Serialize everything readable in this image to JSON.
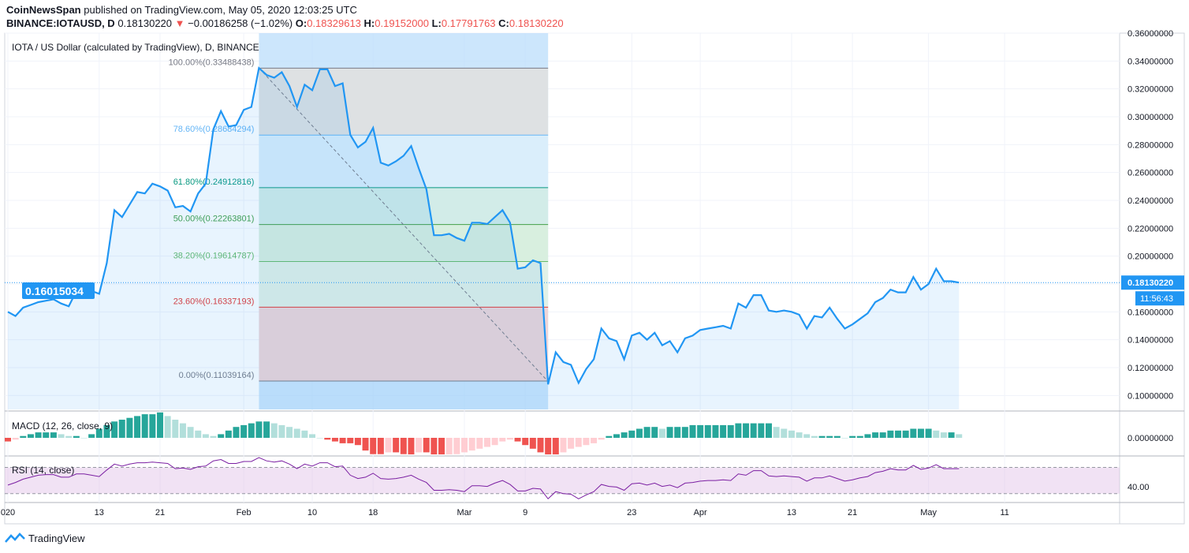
{
  "header": {
    "publisher": "CoinNewsSpan",
    "published_text": "published on TradingView.com, May 05, 2020 12:03:25 UTC",
    "symbol": "BINANCE:IOTAUSD, D",
    "last_price": "0.18130220",
    "change_arrow": "▼",
    "change": "−0.00186258 (−1.02%)",
    "open_label": "O:",
    "open": "0.18329613",
    "high_label": "H:",
    "high": "0.19152000",
    "low_label": "L:",
    "low": "0.17791763",
    "close_label": "C:",
    "close": "0.18130220"
  },
  "chart_data": {
    "type": "line",
    "title": "IOTA / US Dollar (calculated by TradingView), D, BINANCE",
    "xlabel": "",
    "ylabel": "",
    "ylim": [
      0.09,
      0.36
    ],
    "y_ticks": [
      "0.36000000",
      "0.34000000",
      "0.32000000",
      "0.30000000",
      "0.28000000",
      "0.26000000",
      "0.24000000",
      "0.22000000",
      "0.20000000",
      "0.18000000",
      "0.16000000",
      "0.14000000",
      "0.12000000",
      "0.10000000"
    ],
    "y_tick_values": [
      0.36,
      0.34,
      0.32,
      0.3,
      0.28,
      0.26,
      0.24,
      0.22,
      0.2,
      0.18,
      0.16,
      0.14,
      0.12,
      0.1
    ],
    "x_ticks": [
      {
        "day": 0,
        "label": "020"
      },
      {
        "day": 12,
        "label": "13"
      },
      {
        "day": 20,
        "label": "21"
      },
      {
        "day": 31,
        "label": "Feb"
      },
      {
        "day": 40,
        "label": "10"
      },
      {
        "day": 48,
        "label": "18"
      },
      {
        "day": 60,
        "label": "Mar"
      },
      {
        "day": 68,
        "label": "9"
      },
      {
        "day": 82,
        "label": "23"
      },
      {
        "day": 91,
        "label": "Apr"
      },
      {
        "day": 103,
        "label": "13"
      },
      {
        "day": 111,
        "label": "21"
      },
      {
        "day": 121,
        "label": "May"
      },
      {
        "day": 131,
        "label": "11"
      }
    ],
    "x_range": [
      0,
      135
    ],
    "series": [
      {
        "values": [
          0.16,
          0.157,
          0.163,
          0.165,
          0.167,
          0.168,
          0.169,
          0.166,
          0.164,
          0.175,
          0.176,
          0.175,
          0.173,
          0.195,
          0.233,
          0.228,
          0.237,
          0.246,
          0.245,
          0.252,
          0.25,
          0.247,
          0.235,
          0.236,
          0.232,
          0.245,
          0.252,
          0.291,
          0.304,
          0.293,
          0.294,
          0.305,
          0.307,
          0.335,
          0.33,
          0.328,
          0.332,
          0.322,
          0.307,
          0.323,
          0.319,
          0.334,
          0.334,
          0.322,
          0.324,
          0.287,
          0.278,
          0.282,
          0.292,
          0.267,
          0.265,
          0.268,
          0.272,
          0.279,
          0.263,
          0.248,
          0.215,
          0.215,
          0.216,
          0.213,
          0.211,
          0.224,
          0.224,
          0.223,
          0.228,
          0.233,
          0.224,
          0.191,
          0.192,
          0.197,
          0.195,
          0.108,
          0.131,
          0.124,
          0.122,
          0.109,
          0.119,
          0.126,
          0.148,
          0.141,
          0.139,
          0.126,
          0.143,
          0.145,
          0.14,
          0.145,
          0.136,
          0.139,
          0.131,
          0.141,
          0.143,
          0.147,
          0.148,
          0.149,
          0.15,
          0.148,
          0.166,
          0.163,
          0.172,
          0.172,
          0.161,
          0.16,
          0.161,
          0.16,
          0.158,
          0.148,
          0.157,
          0.156,
          0.163,
          0.155,
          0.148,
          0.151,
          0.155,
          0.159,
          0.167,
          0.17,
          0.176,
          0.174,
          0.174,
          0.185,
          0.176,
          0.18,
          0.191,
          0.182,
          0.182,
          0.181
        ]
      }
    ],
    "last_value_label": "0.18130220",
    "countdown_label": "11:56:43",
    "crosshair_label": "0.16015034",
    "fib_levels": [
      {
        "ratio": "100.00%",
        "price": 0.33488438,
        "label": "100.00%(0.33488438)",
        "color": "#787b86",
        "fill": "#e0e0e0"
      },
      {
        "ratio": "78.60%",
        "price": 0.28684294,
        "label": "78.60%(0.28684294)",
        "color": "#64b5f6",
        "fill": "#dbeefb"
      },
      {
        "ratio": "61.80%",
        "price": 0.24912816,
        "label": "61.80%(0.24912816)",
        "color": "#089981",
        "fill": "#d3ece6"
      },
      {
        "ratio": "50.00%",
        "price": 0.22263801,
        "label": "50.00%(0.22263801)",
        "color": "#43a047",
        "fill": "#d9efdb"
      },
      {
        "ratio": "38.20%",
        "price": 0.19614787,
        "label": "38.20%(0.19614787)",
        "color": "#66bb6a",
        "fill": "#e3f2e4"
      },
      {
        "ratio": "23.60%",
        "price": 0.16337193,
        "label": "23.60%(0.16337193)",
        "color": "#e53935",
        "fill": "#f3d3d3"
      },
      {
        "ratio": "0.00%",
        "price": 0.11039164,
        "label": "0.00%(0.11039164)",
        "color": "#787b86",
        "fill": "#f3d3d3"
      }
    ],
    "fib_day_range": [
      33,
      71
    ],
    "trend_line": {
      "from_day": 33,
      "from_price": 0.335,
      "to_day": 71,
      "to_price": 0.11
    },
    "grid": true,
    "macd": {
      "label": "MACD (12, 26, close, 9)",
      "y_tick": "0.00000000",
      "histogram": [
        -2,
        -1,
        1,
        2,
        3,
        3,
        3,
        2,
        1,
        1,
        0,
        2,
        5,
        7,
        9,
        10,
        11,
        12,
        13,
        13,
        14,
        12,
        10,
        8,
        6,
        4,
        2,
        1,
        2,
        4,
        6,
        7,
        8,
        9,
        9,
        8,
        7,
        6,
        5,
        4,
        2,
        0,
        -1,
        -2,
        -3,
        -3,
        -4,
        -7,
        -9,
        -9,
        -8,
        -8,
        -9,
        -10,
        -8,
        -8,
        -10,
        -11,
        -10,
        -9,
        -8,
        -7,
        -6,
        -5,
        -4,
        -2,
        -1,
        -2,
        -4,
        -6,
        -8,
        -10,
        -10,
        -8,
        -6,
        -5,
        -4,
        -3,
        -1,
        1,
        2,
        3,
        4,
        5,
        6,
        6,
        5,
        6,
        6,
        6,
        7,
        7,
        7,
        7,
        7,
        7,
        8,
        8,
        8,
        8,
        8,
        6,
        5,
        4,
        3,
        2,
        1,
        1,
        1,
        1,
        0,
        1,
        1,
        2,
        3,
        3,
        4,
        4,
        4,
        5,
        5,
        5,
        4,
        3,
        3,
        2
      ]
    },
    "rsi": {
      "label": "RSI (14, close)",
      "y_tick": "40.00",
      "values": [
        43,
        47,
        52,
        55,
        58,
        59,
        59,
        55,
        55,
        60,
        60,
        58,
        56,
        66,
        75,
        72,
        75,
        77,
        77,
        78,
        77,
        76,
        68,
        69,
        67,
        71,
        72,
        80,
        82,
        76,
        76,
        79,
        79,
        85,
        80,
        78,
        80,
        75,
        68,
        75,
        72,
        77,
        77,
        71,
        72,
        58,
        53,
        55,
        61,
        53,
        52,
        53,
        55,
        58,
        52,
        47,
        35,
        35,
        36,
        35,
        33,
        42,
        42,
        41,
        46,
        50,
        44,
        34,
        34,
        38,
        37,
        22,
        33,
        30,
        29,
        22,
        28,
        33,
        44,
        41,
        40,
        35,
        45,
        46,
        43,
        46,
        41,
        43,
        39,
        46,
        47,
        49,
        50,
        50,
        51,
        50,
        60,
        58,
        65,
        65,
        57,
        56,
        57,
        56,
        55,
        49,
        54,
        54,
        57,
        53,
        49,
        51,
        54,
        56,
        62,
        64,
        68,
        66,
        66,
        73,
        67,
        69,
        74,
        68,
        68,
        68
      ]
    }
  },
  "footer": {
    "brand": "TradingView"
  }
}
